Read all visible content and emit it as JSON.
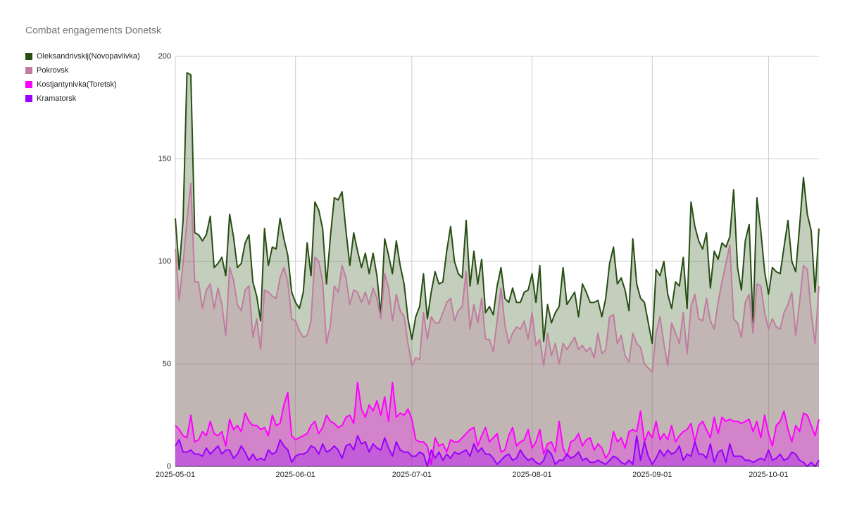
{
  "chart_data": {
    "type": "area",
    "title": "Combat engagements Donetsk",
    "x": [
      "2025-05-01",
      "2025-05-02",
      "2025-05-03",
      "2025-05-04",
      "2025-05-05",
      "2025-05-06",
      "2025-05-07",
      "2025-05-08",
      "2025-05-09",
      "2025-05-10",
      "2025-05-11",
      "2025-05-12",
      "2025-05-13",
      "2025-05-14",
      "2025-05-15",
      "2025-05-16",
      "2025-05-17",
      "2025-05-18",
      "2025-05-19",
      "2025-05-20",
      "2025-05-21",
      "2025-05-22",
      "2025-05-23",
      "2025-05-24",
      "2025-05-25",
      "2025-05-26",
      "2025-05-27",
      "2025-05-28",
      "2025-05-29",
      "2025-05-30",
      "2025-05-31",
      "2025-06-01",
      "2025-06-02",
      "2025-06-03",
      "2025-06-04",
      "2025-06-05",
      "2025-06-06",
      "2025-06-07",
      "2025-06-08",
      "2025-06-09",
      "2025-06-10",
      "2025-06-11",
      "2025-06-12",
      "2025-06-13",
      "2025-06-14",
      "2025-06-15",
      "2025-06-16",
      "2025-06-17",
      "2025-06-18",
      "2025-06-19",
      "2025-06-20",
      "2025-06-21",
      "2025-06-22",
      "2025-06-23",
      "2025-06-24",
      "2025-06-25",
      "2025-06-26",
      "2025-06-27",
      "2025-06-28",
      "2025-06-29",
      "2025-06-30",
      "2025-07-01",
      "2025-07-02",
      "2025-07-03",
      "2025-07-04",
      "2025-07-05",
      "2025-07-06",
      "2025-07-07",
      "2025-07-08",
      "2025-07-09",
      "2025-07-10",
      "2025-07-11",
      "2025-07-12",
      "2025-07-13",
      "2025-07-14",
      "2025-07-15",
      "2025-07-16",
      "2025-07-17",
      "2025-07-18",
      "2025-07-19",
      "2025-07-20",
      "2025-07-21",
      "2025-07-22",
      "2025-07-23",
      "2025-07-24",
      "2025-07-25",
      "2025-07-26",
      "2025-07-27",
      "2025-07-28",
      "2025-07-29",
      "2025-07-30",
      "2025-07-31",
      "2025-08-01",
      "2025-08-02",
      "2025-08-03",
      "2025-08-04",
      "2025-08-05",
      "2025-08-06",
      "2025-08-07",
      "2025-08-08",
      "2025-08-09",
      "2025-08-10",
      "2025-08-11",
      "2025-08-12",
      "2025-08-13",
      "2025-08-14",
      "2025-08-15",
      "2025-08-16",
      "2025-08-17",
      "2025-08-18",
      "2025-08-19",
      "2025-08-20",
      "2025-08-21",
      "2025-08-22",
      "2025-08-23",
      "2025-08-24",
      "2025-08-25",
      "2025-08-26",
      "2025-08-27",
      "2025-08-28",
      "2025-08-29",
      "2025-08-30",
      "2025-08-31",
      "2025-09-01",
      "2025-09-02",
      "2025-09-03",
      "2025-09-04",
      "2025-09-05",
      "2025-09-06",
      "2025-09-07",
      "2025-09-08",
      "2025-09-09",
      "2025-09-10",
      "2025-09-11",
      "2025-09-12",
      "2025-09-13",
      "2025-09-14",
      "2025-09-15",
      "2025-09-16",
      "2025-09-17",
      "2025-09-18",
      "2025-09-19",
      "2025-09-20",
      "2025-09-21",
      "2025-09-22",
      "2025-09-23",
      "2025-09-24",
      "2025-09-25",
      "2025-09-26",
      "2025-09-27",
      "2025-09-28",
      "2025-09-29",
      "2025-09-30",
      "2025-10-01",
      "2025-10-02",
      "2025-10-03",
      "2025-10-04",
      "2025-10-05",
      "2025-10-06",
      "2025-10-07",
      "2025-10-08",
      "2025-10-09",
      "2025-10-10",
      "2025-10-11",
      "2025-10-12",
      "2025-10-13",
      "2025-10-14"
    ],
    "series": [
      {
        "name": "Oleksandrivskij(Novopavlivka)",
        "color": "#274e13",
        "values": [
          121,
          96,
          120,
          192,
          191,
          114,
          113,
          110,
          113,
          122,
          97,
          99,
          102,
          93,
          123,
          112,
          97,
          99,
          109,
          113,
          90,
          83,
          71,
          116,
          98,
          107,
          106,
          121,
          111,
          103,
          85,
          80,
          77,
          85,
          109,
          93,
          129,
          125,
          116,
          89,
          112,
          131,
          130,
          134,
          115,
          98,
          114,
          105,
          97,
          104,
          94,
          104,
          93,
          74,
          111,
          103,
          94,
          110,
          98,
          89,
          72,
          62,
          73,
          78,
          94,
          72,
          85,
          95,
          89,
          90,
          105,
          117,
          100,
          94,
          92,
          120,
          88,
          105,
          89,
          101,
          75,
          78,
          74,
          88,
          97,
          82,
          80,
          87,
          80,
          80,
          85,
          86,
          94,
          80,
          98,
          61,
          79,
          70,
          75,
          78,
          97,
          79,
          82,
          85,
          73,
          89,
          85,
          80,
          80,
          81,
          73,
          82,
          99,
          107,
          89,
          92,
          86,
          76,
          111,
          89,
          82,
          80,
          70,
          60,
          96,
          93,
          100,
          84,
          77,
          90,
          88,
          102,
          77,
          129,
          117,
          110,
          106,
          114,
          87,
          105,
          101,
          109,
          107,
          112,
          135,
          97,
          86,
          110,
          118,
          70,
          131,
          115,
          95,
          84,
          97,
          95,
          94,
          107,
          120,
          100,
          95,
          117,
          141,
          123,
          115,
          85,
          116
        ]
      },
      {
        "name": "Pokrovsk",
        "color": "#c27ba0",
        "values": [
          106,
          81,
          99,
          120,
          138,
          90,
          90,
          77,
          86,
          89,
          77,
          87,
          79,
          64,
          97,
          91,
          79,
          76,
          86,
          88,
          63,
          72,
          57,
          86,
          85,
          83,
          82,
          92,
          97,
          90,
          72,
          71,
          66,
          63,
          64,
          71,
          102,
          100,
          90,
          60,
          69,
          88,
          85,
          98,
          92,
          79,
          86,
          85,
          80,
          85,
          79,
          87,
          82,
          72,
          94,
          87,
          71,
          84,
          76,
          73,
          60,
          49,
          53,
          52,
          75,
          62,
          73,
          70,
          70,
          75,
          80,
          82,
          71,
          76,
          78,
          95,
          67,
          79,
          70,
          82,
          62,
          62,
          56,
          71,
          87,
          69,
          60,
          65,
          68,
          67,
          71,
          62,
          75,
          59,
          62,
          49,
          65,
          54,
          60,
          50,
          60,
          57,
          60,
          63,
          57,
          59,
          56,
          58,
          53,
          65,
          55,
          57,
          73,
          74,
          60,
          64,
          54,
          51,
          65,
          60,
          58,
          50,
          48,
          46,
          65,
          73,
          60,
          49,
          70,
          65,
          60,
          75,
          55,
          78,
          84,
          72,
          71,
          82,
          71,
          67,
          80,
          90,
          99,
          108,
          72,
          70,
          63,
          80,
          84,
          65,
          89,
          88,
          75,
          67,
          72,
          68,
          67,
          75,
          79,
          85,
          64,
          80,
          98,
          96,
          75,
          60,
          88
        ]
      },
      {
        "name": "Kostjantynivka(Toretsk)",
        "color": "#ff00ff",
        "values": [
          20,
          18,
          15,
          14,
          25,
          12,
          13,
          17,
          15,
          22,
          16,
          15,
          17,
          10,
          23,
          18,
          20,
          17,
          26,
          22,
          20,
          20,
          18,
          19,
          15,
          25,
          20,
          21,
          30,
          36,
          15,
          13,
          14,
          15,
          16,
          20,
          22,
          16,
          19,
          25,
          22,
          21,
          19,
          20,
          24,
          25,
          21,
          41,
          28,
          24,
          30,
          27,
          32,
          25,
          34,
          22,
          41,
          24,
          26,
          25,
          28,
          23,
          13,
          12,
          12,
          10,
          1,
          14,
          10,
          11,
          7,
          13,
          12,
          12,
          14,
          16,
          18,
          19,
          10,
          15,
          19,
          12,
          14,
          16,
          7,
          8,
          15,
          19,
          10,
          12,
          13,
          18,
          9,
          12,
          18,
          6,
          11,
          12,
          7,
          22,
          9,
          5,
          12,
          13,
          16,
          10,
          13,
          14,
          8,
          11,
          9,
          4,
          7,
          17,
          12,
          14,
          9,
          17,
          18,
          17,
          27,
          12,
          17,
          14,
          22,
          13,
          16,
          13,
          20,
          12,
          15,
          17,
          18,
          21,
          12,
          20,
          22,
          18,
          14,
          24,
          16,
          24,
          22,
          23,
          22,
          22,
          21,
          22,
          23,
          17,
          22,
          14,
          25,
          16,
          10,
          20,
          22,
          27,
          18,
          12,
          20,
          17,
          26,
          25,
          20,
          15,
          23
        ]
      },
      {
        "name": "Kramatorsk",
        "color": "#9900ff",
        "values": [
          10,
          13,
          7,
          7,
          8,
          6,
          6,
          5,
          9,
          6,
          8,
          10,
          6,
          8,
          8,
          4,
          6,
          10,
          7,
          3,
          6,
          3,
          4,
          3,
          8,
          6,
          7,
          13,
          10,
          8,
          2,
          5,
          6,
          6,
          7,
          10,
          9,
          6,
          11,
          7,
          8,
          10,
          8,
          4,
          10,
          11,
          8,
          15,
          11,
          12,
          7,
          11,
          9,
          8,
          14,
          9,
          5,
          12,
          8,
          7,
          7,
          5,
          5,
          7,
          6,
          0,
          8,
          4,
          7,
          3,
          6,
          4,
          7,
          6,
          7,
          8,
          5,
          11,
          7,
          9,
          6,
          6,
          4,
          1,
          3,
          5,
          6,
          3,
          4,
          8,
          5,
          3,
          4,
          2,
          1,
          3,
          8,
          6,
          1,
          3,
          3,
          6,
          4,
          5,
          7,
          3,
          4,
          2,
          2,
          3,
          2,
          1,
          3,
          5,
          4,
          2,
          1,
          3,
          1,
          15,
          3,
          12,
          5,
          1,
          4,
          8,
          5,
          8,
          6,
          7,
          10,
          3,
          6,
          5,
          12,
          6,
          6,
          4,
          11,
          2,
          7,
          8,
          2,
          11,
          5,
          5,
          5,
          3,
          3,
          2,
          3,
          4,
          3,
          8,
          3,
          4,
          6,
          3,
          4,
          7,
          6,
          3,
          2,
          0,
          2,
          0,
          3
        ]
      }
    ],
    "xlim": [
      "2025-05-01",
      "2025-10-14"
    ],
    "xticks": [
      "2025-05-01",
      "2025-06-01",
      "2025-07-01",
      "2025-08-01",
      "2025-09-01",
      "2025-10-01"
    ],
    "ylim": [
      0,
      200
    ],
    "yticks": [
      0,
      50,
      100,
      150,
      200
    ],
    "grid": true,
    "legend": "left"
  }
}
